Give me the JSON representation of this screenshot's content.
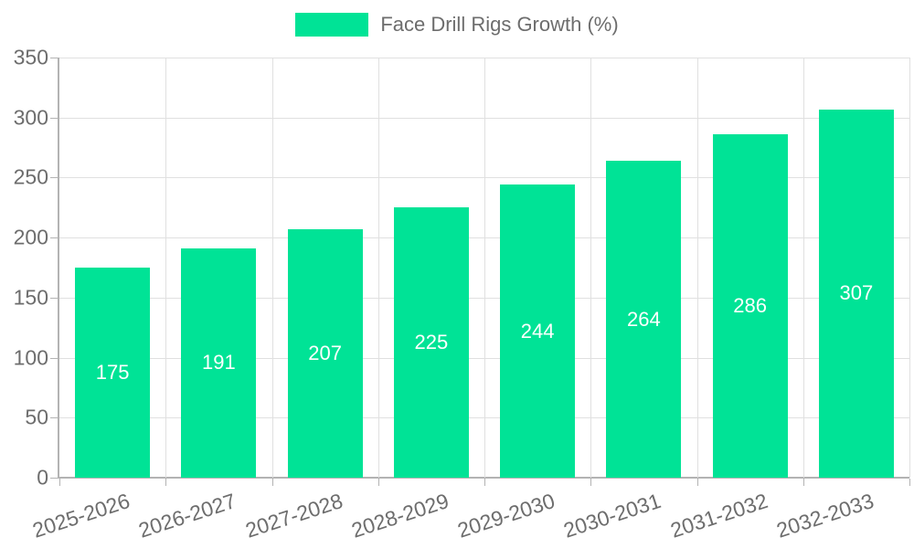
{
  "legend": {
    "label": "Face Drill Rigs Growth (%)"
  },
  "chart_data": {
    "type": "bar",
    "title": "",
    "categories": [
      "2025-2026",
      "2026-2027",
      "2027-2028",
      "2028-2029",
      "2029-2030",
      "2030-2031",
      "2031-2032",
      "2032-2033"
    ],
    "series": [
      {
        "name": "Face Drill Rigs Growth (%)",
        "values": [
          175,
          191,
          207,
          225,
          244,
          264,
          286,
          307
        ]
      }
    ],
    "value_labels": [
      "175",
      "191",
      "207",
      "225",
      "244",
      "264",
      "286",
      "307"
    ],
    "xlabel": "",
    "ylabel": "",
    "ylim": [
      0,
      350
    ],
    "yticks": [
      0,
      50,
      100,
      150,
      200,
      250,
      300,
      350
    ],
    "grid": true,
    "legend_position": "top",
    "colors": {
      "bar": "#00E396",
      "grid": "#e0e0e0",
      "axis": "#b3b3b3",
      "tick_label": "#6d6d6d",
      "value_label": "#ffffff"
    }
  }
}
